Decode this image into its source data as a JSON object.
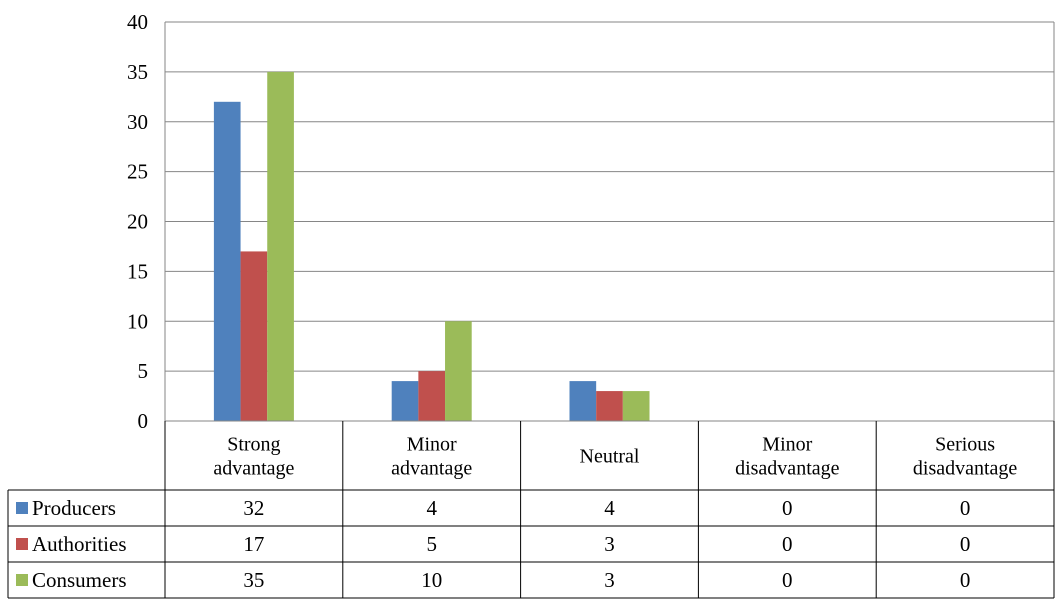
{
  "chart_data": {
    "type": "bar",
    "categories": [
      [
        "Strong",
        "advantage"
      ],
      [
        "Minor",
        "advantage"
      ],
      [
        "Neutral"
      ],
      [
        "Minor",
        "disadvantage"
      ],
      [
        "Serious",
        "disadvantage"
      ]
    ],
    "series": [
      {
        "name": "Producers",
        "color": "#4F81BD",
        "values": [
          32,
          4,
          4,
          0,
          0
        ]
      },
      {
        "name": "Authorities",
        "color": "#C0504D",
        "values": [
          17,
          5,
          3,
          0,
          0
        ]
      },
      {
        "name": "Consumers",
        "color": "#9BBB59",
        "values": [
          35,
          10,
          3,
          0,
          0
        ]
      }
    ],
    "ylim": [
      0,
      40
    ],
    "yticks": [
      0,
      5,
      10,
      15,
      20,
      25,
      30,
      35,
      40
    ],
    "grid": true,
    "legend": "data-table"
  }
}
